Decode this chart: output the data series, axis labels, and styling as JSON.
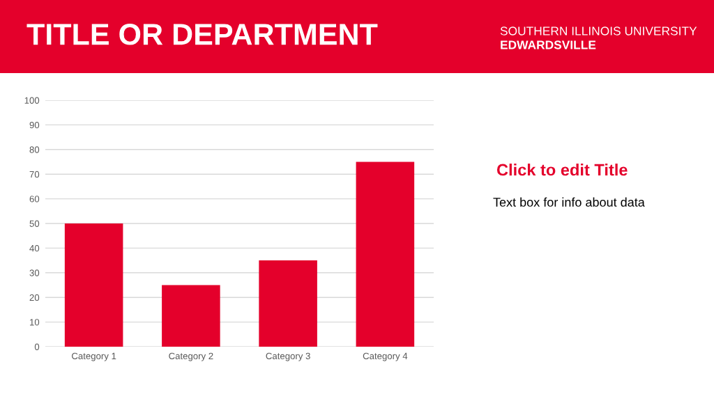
{
  "chart_data": {
    "type": "bar",
    "title": "TITLE OR DEPARTMENT",
    "annotations": [
      "SOUTHERN ILLINOIS UNIVERSITY",
      "EDWARDSVILLE",
      "Click to edit Title",
      "Text box for info about data"
    ],
    "categories": [
      "Category 1",
      "Category 2",
      "Category 3",
      "Category 4"
    ],
    "values": [
      50,
      25,
      35,
      75
    ],
    "color": "#e4002b",
    "ylim": [
      0,
      100
    ],
    "yticks": [
      0,
      10,
      20,
      30,
      40,
      50,
      60,
      70,
      80,
      90,
      100
    ],
    "grid": "y",
    "legend": false
  }
}
